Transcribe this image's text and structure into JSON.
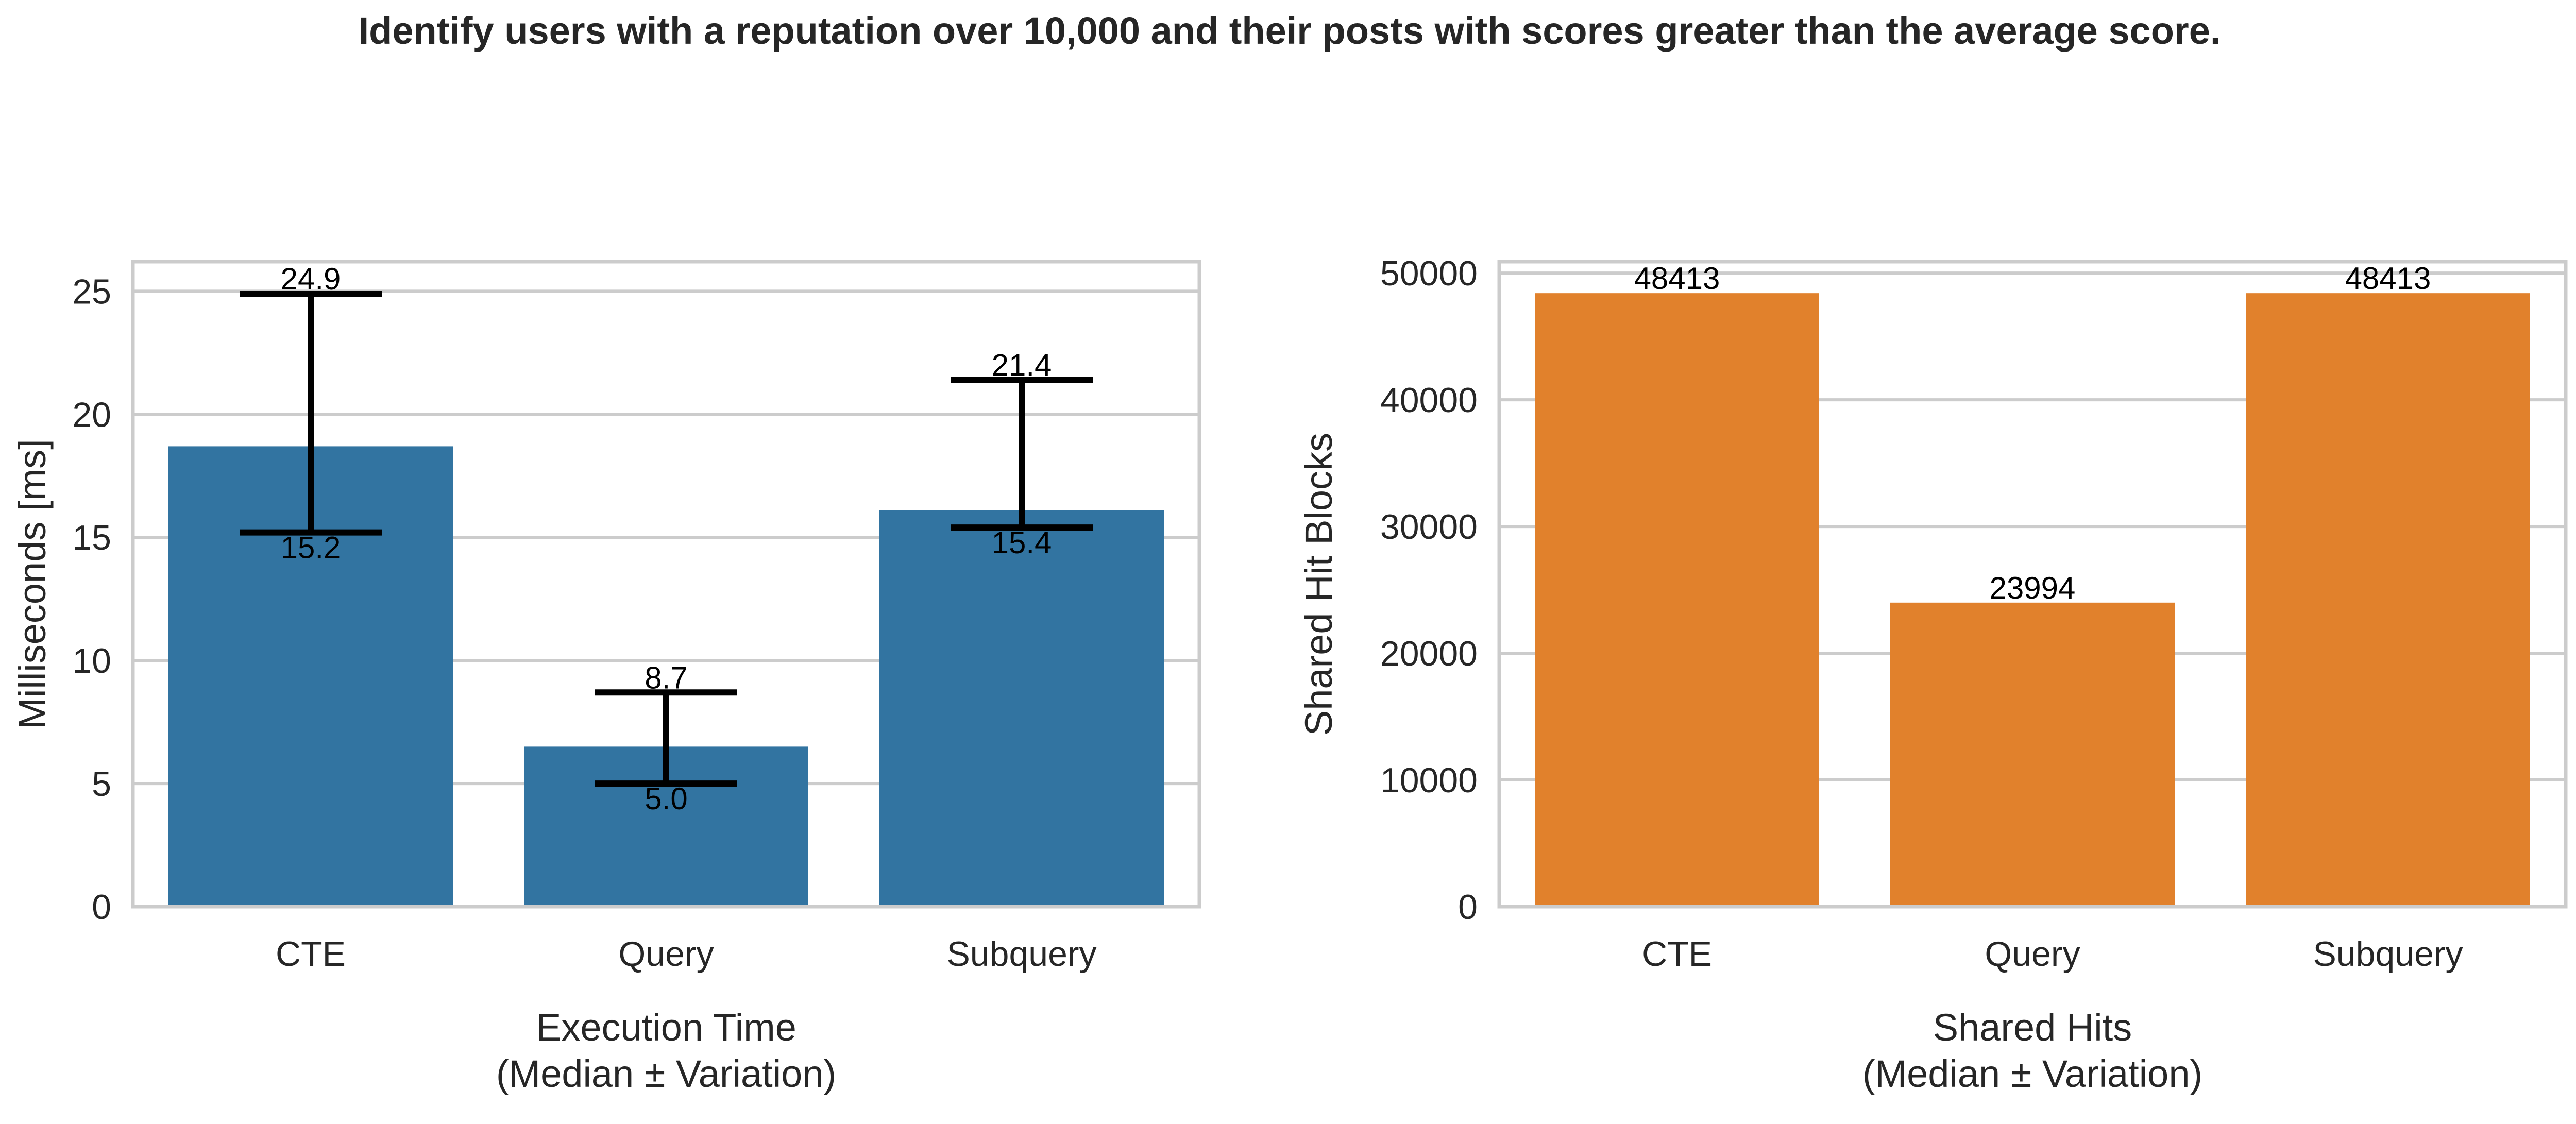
{
  "title": "Identify users with a reputation over 10,000 and their posts with scores greater than the average score.",
  "chart_data": [
    {
      "type": "bar",
      "categories": [
        "CTE",
        "Query",
        "Subquery"
      ],
      "values": [
        18.7,
        6.5,
        16.1
      ],
      "error_low": [
        15.2,
        5.0,
        15.4
      ],
      "error_high": [
        24.9,
        8.7,
        21.4
      ],
      "error_low_labels": [
        "15.2",
        "5.0",
        "15.4"
      ],
      "error_high_labels": [
        "24.9",
        "8.7",
        "21.4"
      ],
      "xlabel": "Execution Time\n(Median ± Variation)",
      "xlabel_lines": [
        "Execution Time",
        "(Median ± Variation)"
      ],
      "ylabel": "Milliseconds [ms]",
      "ylim": [
        0,
        26.2
      ],
      "yticks": [
        0,
        5,
        10,
        15,
        20,
        25
      ],
      "color": "#3274a1",
      "grid": "horizontal"
    },
    {
      "type": "bar",
      "categories": [
        "CTE",
        "Query",
        "Subquery"
      ],
      "values": [
        48413,
        23994,
        48413
      ],
      "value_labels": [
        "48413",
        "23994",
        "48413"
      ],
      "xlabel": "Shared Hits\n(Median ± Variation)",
      "xlabel_lines": [
        "Shared Hits",
        "(Median ± Variation)"
      ],
      "ylabel": "Shared Hit Blocks",
      "ylim": [
        0,
        50900
      ],
      "yticks": [
        0,
        10000,
        20000,
        30000,
        40000,
        50000
      ],
      "color": "#e1812c",
      "grid": "horizontal"
    }
  ]
}
